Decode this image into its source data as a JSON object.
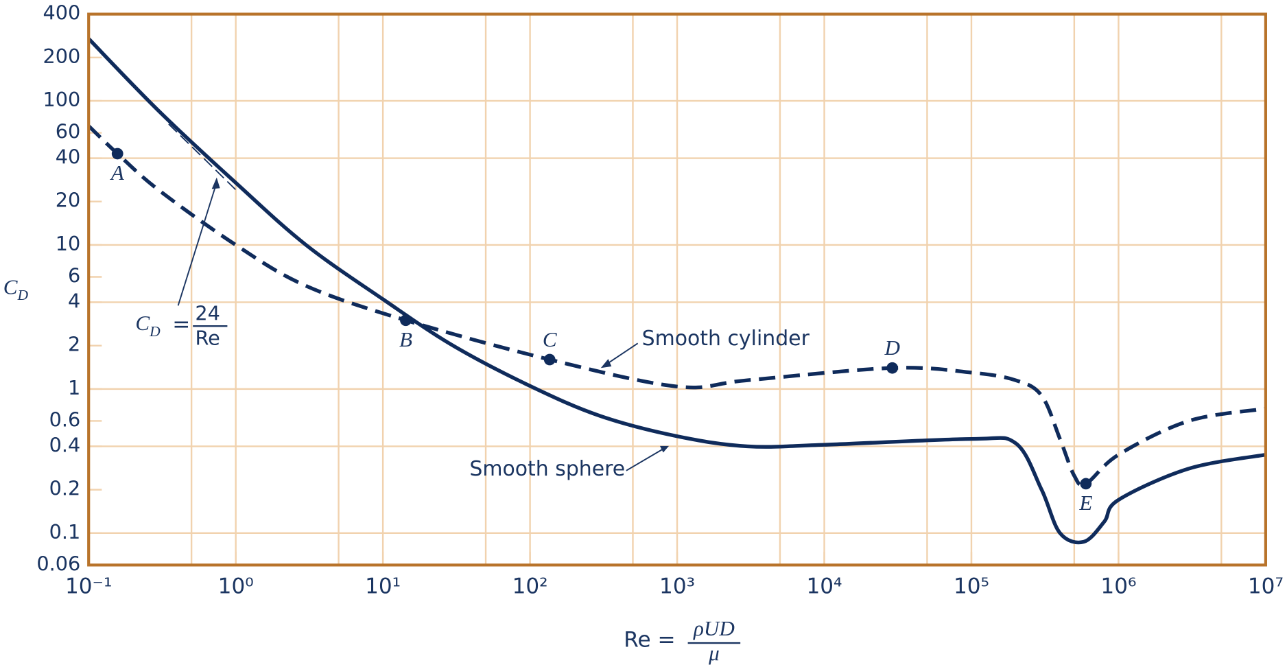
{
  "chart_data": {
    "type": "line",
    "xlabel": {
      "lhs": "Re =",
      "num": "ρUD",
      "den": "μ"
    },
    "ylabel": {
      "text": "C",
      "sub": "D"
    },
    "xscale": "log",
    "yscale": "log",
    "xlim": [
      0.1,
      10000000
    ],
    "ylim": [
      0.06,
      400
    ],
    "xticks": [
      {
        "value": 0.1,
        "label": "10⁻¹"
      },
      {
        "value": 1,
        "label": "10⁰"
      },
      {
        "value": 10,
        "label": "10¹"
      },
      {
        "value": 100,
        "label": "10²"
      },
      {
        "value": 1000,
        "label": "10³"
      },
      {
        "value": 10000,
        "label": "10⁴"
      },
      {
        "value": 100000,
        "label": "10⁵"
      },
      {
        "value": 1000000,
        "label": "10⁶"
      },
      {
        "value": 10000000,
        "label": "10⁷"
      }
    ],
    "yticks": [
      400,
      200,
      100,
      60,
      40,
      20,
      10,
      6,
      4,
      2,
      1,
      0.6,
      0.4,
      0.2,
      0.1,
      0.06
    ],
    "grid": true,
    "xgrid": [
      0.5,
      1,
      5,
      10,
      50,
      100,
      500,
      1000,
      5000,
      10000,
      50000,
      100000,
      500000,
      1000000,
      5000000
    ],
    "ygrid": [
      0.1,
      0.4,
      1,
      4,
      10,
      40,
      100
    ],
    "series": [
      {
        "name": "Smooth sphere",
        "color": "#0f2b5b",
        "style": "solid",
        "x": [
          0.1,
          0.3,
          1,
          3,
          10,
          30,
          100,
          300,
          1000,
          3000,
          10000,
          100000,
          200000,
          300000,
          400000,
          580000,
          800000,
          1000000,
          3000000,
          10000000
        ],
        "values": [
          270,
          85,
          27,
          10,
          4.2,
          2.0,
          1.05,
          0.65,
          0.47,
          0.4,
          0.41,
          0.45,
          0.42,
          0.2,
          0.1,
          0.087,
          0.12,
          0.17,
          0.28,
          0.35
        ]
      },
      {
        "name": "Smooth cylinder",
        "color": "#0f2b5b",
        "style": "dashed",
        "x": [
          0.1,
          0.157,
          0.3,
          1,
          3,
          14.3,
          136,
          1000,
          3000,
          29000,
          100000,
          200000,
          300000,
          400000,
          500000,
          600000,
          1000000,
          3000000,
          10000000
        ],
        "values": [
          67,
          43,
          24,
          10,
          5.2,
          3.0,
          1.6,
          1.04,
          1.15,
          1.4,
          1.3,
          1.15,
          0.9,
          0.45,
          0.25,
          0.22,
          0.35,
          0.6,
          0.73
        ]
      }
    ],
    "reference_line": {
      "x": [
        0.35,
        1.05
      ],
      "values": [
        69,
        23
      ]
    },
    "formula": {
      "lhs": "C",
      "sub": "D",
      "eq": "=",
      "num": "24",
      "den": "Re"
    },
    "points": [
      {
        "label": "A",
        "x": 0.157,
        "y": 43,
        "position": "below"
      },
      {
        "label": "B",
        "x": 14.3,
        "y": 3.0,
        "position": "below"
      },
      {
        "label": "C",
        "x": 136,
        "y": 1.6,
        "position": "above"
      },
      {
        "label": "D",
        "x": 29000,
        "y": 1.4,
        "position": "above"
      },
      {
        "label": "E",
        "x": 600000,
        "y": 0.22,
        "position": "below"
      }
    ]
  }
}
